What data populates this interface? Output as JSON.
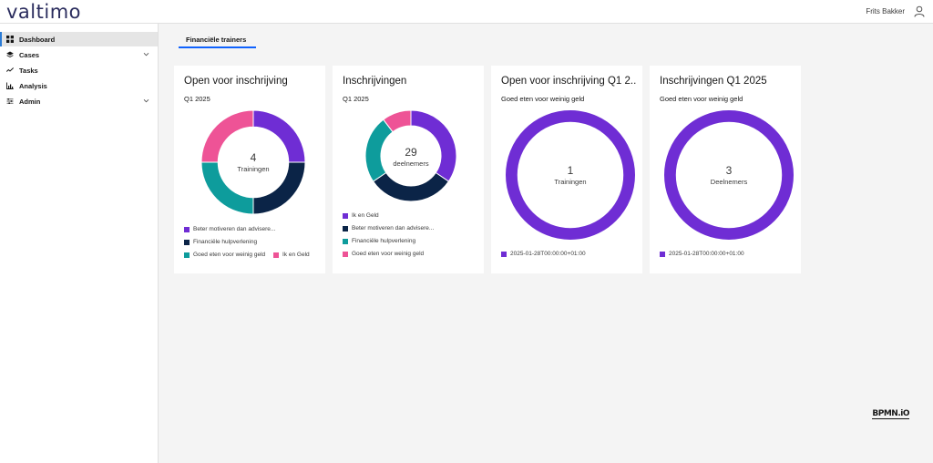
{
  "app": {
    "logo": "valtimo",
    "user": "Frits Bakker"
  },
  "colors": {
    "purple": "#6f2dd4",
    "navy": "#0b2447",
    "teal": "#0e9c9c",
    "pink": "#ee5396"
  },
  "sidebar": {
    "items": [
      {
        "label": "Dashboard",
        "icon": "dashboard-icon",
        "active": true
      },
      {
        "label": "Cases",
        "icon": "layers-icon",
        "expandable": true
      },
      {
        "label": "Tasks",
        "icon": "tasks-icon"
      },
      {
        "label": "Analysis",
        "icon": "analysis-icon"
      },
      {
        "label": "Admin",
        "icon": "admin-icon",
        "expandable": true
      }
    ]
  },
  "tabs": [
    {
      "label": "Financiële trainers",
      "active": true
    }
  ],
  "cards": [
    {
      "title": "Open voor inschrijving",
      "subtitle": "Q1 2025",
      "center_value": "4",
      "center_label": "Trainingen",
      "legend": [
        "Beter motiveren dan advisere...",
        "Financiële hulpverlening",
        "Goed eten voor weinig geld",
        "Ik en Geld"
      ]
    },
    {
      "title": "Inschrijvingen",
      "subtitle": "Q1 2025",
      "center_value": "29",
      "center_label": "deelnemers",
      "legend": [
        "Ik en Geld",
        "Beter motiveren dan advisere...",
        "Financiële hulpverlening",
        "Goed eten voor weinig geld"
      ]
    },
    {
      "title": "Open voor inschrijving Q1 2...",
      "subtitle": "Goed eten voor weinig geld",
      "center_value": "1",
      "center_label": "Trainingen",
      "legend": [
        "2025-01-28T00:00:00+01:00"
      ]
    },
    {
      "title": "Inschrijvingen Q1 2025",
      "subtitle": "Goed eten voor weinig geld",
      "center_value": "3",
      "center_label": "Deelnemers",
      "legend": [
        "2025-01-28T00:00:00+01:00"
      ]
    }
  ],
  "chart_data": [
    {
      "type": "pie",
      "title": "Open voor inschrijving",
      "categories": [
        "Beter motiveren dan advisere...",
        "Financiële hulpverlening",
        "Goed eten voor weinig geld",
        "Ik en Geld"
      ],
      "values": [
        1,
        1,
        1,
        1
      ],
      "colors": [
        "#6f2dd4",
        "#0b2447",
        "#0e9c9c",
        "#ee5396"
      ]
    },
    {
      "type": "pie",
      "title": "Inschrijvingen",
      "categories": [
        "Ik en Geld",
        "Beter motiveren dan advisere...",
        "Financiële hulpverlening",
        "Goed eten voor weinig geld"
      ],
      "values": [
        10,
        9,
        7,
        3
      ],
      "colors": [
        "#6f2dd4",
        "#0b2447",
        "#0e9c9c",
        "#ee5396"
      ]
    },
    {
      "type": "pie",
      "title": "Open voor inschrijving Q1 2...",
      "categories": [
        "2025-01-28T00:00:00+01:00"
      ],
      "values": [
        1
      ],
      "colors": [
        "#6f2dd4"
      ]
    },
    {
      "type": "pie",
      "title": "Inschrijvingen Q1 2025",
      "categories": [
        "2025-01-28T00:00:00+01:00"
      ],
      "values": [
        3
      ],
      "colors": [
        "#6f2dd4"
      ]
    }
  ],
  "footer": {
    "brand": "BPMN.iO"
  }
}
